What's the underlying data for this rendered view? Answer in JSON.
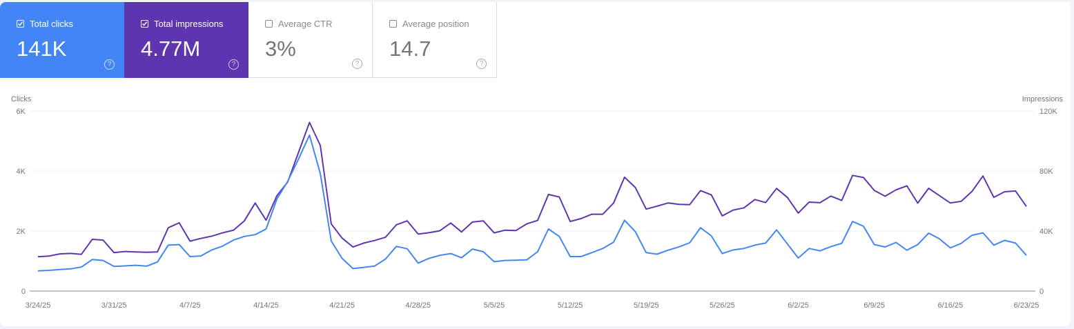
{
  "cards": [
    {
      "label": "Total clicks",
      "value": "141K",
      "checked": true,
      "color": "#4285f4"
    },
    {
      "label": "Total impressions",
      "value": "4.77M",
      "checked": true,
      "color": "#5e35b1"
    },
    {
      "label": "Average CTR",
      "value": "3%",
      "checked": false
    },
    {
      "label": "Average position",
      "value": "14.7",
      "checked": false
    }
  ],
  "help_icon": "?",
  "chart_data": {
    "type": "line",
    "ylabel_left": "Clicks",
    "ylabel_right": "Impressions",
    "ylim_left": [
      0,
      6000
    ],
    "ylim_right": [
      0,
      120000
    ],
    "yticks_left": [
      "0",
      "2K",
      "4K",
      "6K"
    ],
    "yticks_right": [
      "0",
      "40K",
      "80K",
      "120K"
    ],
    "xticks": [
      "3/24/25",
      "3/31/25",
      "4/7/25",
      "4/14/25",
      "4/21/25",
      "4/28/25",
      "5/5/25",
      "5/12/25",
      "5/19/25",
      "5/26/25",
      "6/2/25",
      "6/9/25",
      "6/16/25",
      "6/23/25"
    ],
    "grid": true,
    "x": [
      "3/24/25",
      "3/25/25",
      "3/26/25",
      "3/27/25",
      "3/28/25",
      "3/29/25",
      "3/30/25",
      "3/31/25",
      "4/1/25",
      "4/2/25",
      "4/3/25",
      "4/4/25",
      "4/5/25",
      "4/6/25",
      "4/7/25",
      "4/8/25",
      "4/9/25",
      "4/10/25",
      "4/11/25",
      "4/12/25",
      "4/13/25",
      "4/14/25",
      "4/15/25",
      "4/16/25",
      "4/17/25",
      "4/18/25",
      "4/19/25",
      "4/20/25",
      "4/21/25",
      "4/22/25",
      "4/23/25",
      "4/24/25",
      "4/25/25",
      "4/26/25",
      "4/27/25",
      "4/28/25",
      "4/29/25",
      "4/30/25",
      "5/1/25",
      "5/2/25",
      "5/3/25",
      "5/4/25",
      "5/5/25",
      "5/6/25",
      "5/7/25",
      "5/8/25",
      "5/9/25",
      "5/10/25",
      "5/11/25",
      "5/12/25",
      "5/13/25",
      "5/14/25",
      "5/15/25",
      "5/16/25",
      "5/17/25",
      "5/18/25",
      "5/19/25",
      "5/20/25",
      "5/21/25",
      "5/22/25",
      "5/23/25",
      "5/24/25",
      "5/25/25",
      "5/26/25",
      "5/27/25",
      "5/28/25",
      "5/29/25",
      "5/30/25",
      "5/31/25",
      "6/1/25",
      "6/2/25",
      "6/3/25",
      "6/4/25",
      "6/5/25",
      "6/6/25",
      "6/7/25",
      "6/8/25",
      "6/9/25",
      "6/10/25",
      "6/11/25",
      "6/12/25",
      "6/13/25",
      "6/14/25",
      "6/15/25",
      "6/16/25",
      "6/17/25",
      "6/18/25",
      "6/19/25",
      "6/20/25",
      "6/21/25",
      "6/22/25",
      "6/23/25"
    ],
    "series": [
      {
        "name": "Clicks",
        "axis": "left",
        "color": "#4285f4",
        "values": [
          673,
          690,
          720,
          740,
          800,
          1050,
          1020,
          820,
          840,
          860,
          830,
          970,
          1530,
          1550,
          1150,
          1170,
          1370,
          1500,
          1700,
          1820,
          1880,
          2070,
          3070,
          3660,
          4410,
          5200,
          3910,
          1670,
          1090,
          750,
          790,
          835,
          1070,
          1490,
          1410,
          930,
          1090,
          1190,
          1250,
          1110,
          1400,
          1310,
          980,
          1020,
          1030,
          1040,
          1310,
          2070,
          1820,
          1150,
          1150,
          1280,
          1420,
          1630,
          2360,
          1980,
          1280,
          1230,
          1360,
          1470,
          1610,
          2110,
          1840,
          1250,
          1370,
          1420,
          1530,
          1600,
          2040,
          1570,
          1100,
          1420,
          1340,
          1480,
          1590,
          2320,
          2160,
          1550,
          1470,
          1620,
          1360,
          1550,
          1930,
          1740,
          1440,
          1590,
          1860,
          1940,
          1530,
          1690,
          1600,
          1190
        ]
      },
      {
        "name": "Impressions",
        "axis": "right",
        "color": "#5e35b1",
        "values": [
          22840,
          23300,
          24800,
          25100,
          24500,
          34500,
          34000,
          25600,
          26400,
          26100,
          25900,
          26100,
          42200,
          45500,
          33300,
          35100,
          36600,
          38800,
          40600,
          46800,
          58700,
          47200,
          63600,
          72800,
          92700,
          112400,
          97000,
          44800,
          35300,
          29400,
          32000,
          33700,
          35900,
          44200,
          46800,
          38000,
          38900,
          40200,
          45400,
          39400,
          46000,
          46800,
          38800,
          40600,
          40300,
          44800,
          47100,
          64400,
          62700,
          46400,
          48300,
          51200,
          51200,
          58700,
          75900,
          69000,
          54600,
          56600,
          58700,
          57800,
          57600,
          67000,
          64100,
          50100,
          54000,
          55500,
          61000,
          59000,
          68400,
          62400,
          52000,
          59300,
          58900,
          63300,
          60400,
          77100,
          75700,
          67100,
          63200,
          67500,
          70100,
          58600,
          68500,
          63600,
          58700,
          59800,
          66500,
          76700,
          62500,
          66200,
          66700,
          56400
        ]
      }
    ]
  }
}
